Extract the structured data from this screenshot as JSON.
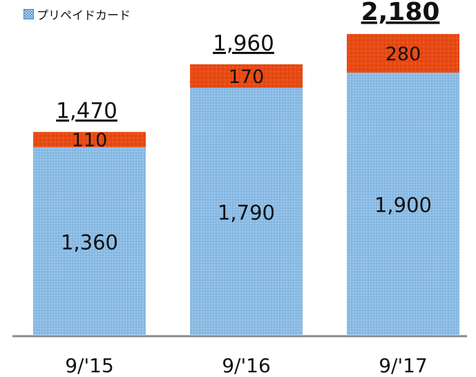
{
  "chart_data": {
    "type": "bar",
    "stacked": true,
    "categories": [
      "9/'15",
      "9/'16",
      "9/'17"
    ],
    "series": [
      {
        "name": "プリペイドカード",
        "values": [
          1360,
          1790,
          1900
        ],
        "color": "#8cbde6"
      },
      {
        "name": "",
        "values": [
          110,
          170,
          280
        ],
        "color": "#e84a14"
      }
    ],
    "totals": [
      "1,470",
      "1,960",
      "2,180"
    ],
    "segment_labels": [
      [
        "1,360",
        "1,790",
        "1,900"
      ],
      [
        "110",
        "170",
        "280"
      ]
    ],
    "legend_position": "top-left",
    "grid": false,
    "title": "",
    "xlabel": "",
    "ylabel": "",
    "ylim": [
      0,
      2420
    ]
  }
}
